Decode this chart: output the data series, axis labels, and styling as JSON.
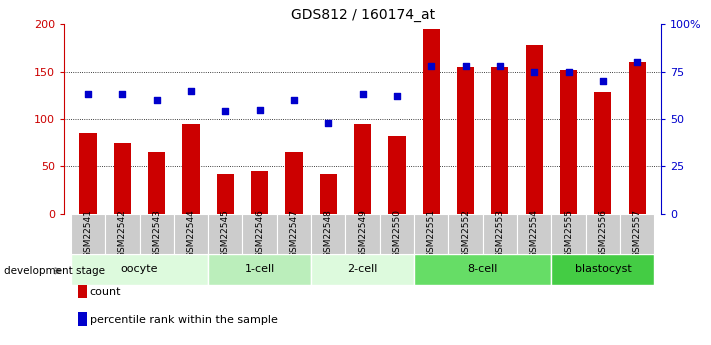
{
  "title": "GDS812 / 160174_at",
  "samples": [
    "GSM22541",
    "GSM22542",
    "GSM22543",
    "GSM22544",
    "GSM22545",
    "GSM22546",
    "GSM22547",
    "GSM22548",
    "GSM22549",
    "GSM22550",
    "GSM22551",
    "GSM22552",
    "GSM22553",
    "GSM22554",
    "GSM22555",
    "GSM22556",
    "GSM22557"
  ],
  "counts": [
    85,
    75,
    65,
    95,
    42,
    45,
    65,
    42,
    95,
    82,
    195,
    155,
    155,
    178,
    152,
    128,
    160
  ],
  "percentiles": [
    63,
    63,
    60,
    65,
    54,
    55,
    60,
    48,
    63,
    62,
    78,
    78,
    78,
    75,
    75,
    70,
    80
  ],
  "stages": [
    {
      "label": "oocyte",
      "start": 0,
      "end": 3,
      "color": "#ddfadd"
    },
    {
      "label": "1-cell",
      "start": 4,
      "end": 6,
      "color": "#bbeebb"
    },
    {
      "label": "2-cell",
      "start": 7,
      "end": 9,
      "color": "#ddfadd"
    },
    {
      "label": "8-cell",
      "start": 10,
      "end": 13,
      "color": "#66dd66"
    },
    {
      "label": "blastocyst",
      "start": 14,
      "end": 16,
      "color": "#44cc44"
    }
  ],
  "bar_color": "#cc0000",
  "dot_color": "#0000cc",
  "ylim_left": [
    0,
    200
  ],
  "ylim_right": [
    0,
    100
  ],
  "yticks_left": [
    0,
    50,
    100,
    150,
    200
  ],
  "ytick_labels_left": [
    "0",
    "50",
    "100",
    "150",
    "200"
  ],
  "yticks_right": [
    0,
    25,
    50,
    75,
    100
  ],
  "ytick_labels_right": [
    "0",
    "25",
    "50",
    "75",
    "100%"
  ],
  "grid_values": [
    50,
    100,
    150
  ],
  "bar_width": 0.5
}
